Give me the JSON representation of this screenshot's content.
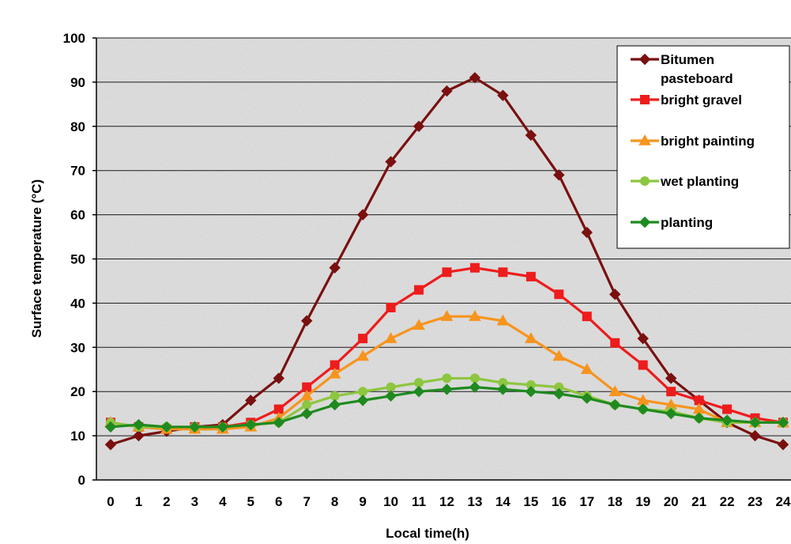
{
  "chart_data": {
    "type": "line",
    "title": "",
    "xlabel": "Local time(h)",
    "ylabel": "Surface temperature (°C)",
    "x": [
      0,
      1,
      2,
      3,
      4,
      5,
      6,
      7,
      8,
      9,
      10,
      11,
      12,
      13,
      14,
      15,
      16,
      17,
      18,
      19,
      20,
      21,
      22,
      23,
      24
    ],
    "xlim": [
      0,
      24
    ],
    "ylim": [
      0,
      100
    ],
    "yticks": [
      0,
      10,
      20,
      30,
      40,
      50,
      60,
      70,
      80,
      90,
      100
    ],
    "grid": true,
    "legend_position": "top-right",
    "series": [
      {
        "name": "Bitumen pasteboard",
        "legend_lines": [
          "Bitumen",
          "pasteboard"
        ],
        "color": "#7a1010",
        "marker": "diamond",
        "values": [
          8,
          10,
          11,
          12,
          12.5,
          18,
          23,
          36,
          48,
          60,
          72,
          80,
          88,
          91,
          87,
          78,
          69,
          56,
          42,
          32,
          23,
          18,
          13,
          10,
          8
        ]
      },
      {
        "name": "bright gravel",
        "legend_lines": [
          "bright gravel"
        ],
        "color": "#ee1c1c",
        "marker": "square",
        "values": [
          13,
          12,
          11.5,
          12,
          12,
          13,
          16,
          21,
          26,
          32,
          39,
          43,
          47,
          48,
          47,
          46,
          42,
          37,
          31,
          26,
          20,
          18,
          16,
          14,
          13
        ]
      },
      {
        "name": "bright painting",
        "legend_lines": [
          "bright painting"
        ],
        "color": "#f7941d",
        "marker": "triangle",
        "values": [
          13,
          12,
          11.5,
          11.5,
          11.5,
          12,
          14,
          19,
          24,
          28,
          32,
          35,
          37,
          37,
          36,
          32,
          28,
          25,
          20,
          18,
          17,
          16,
          13,
          13,
          13
        ]
      },
      {
        "name": "wet planting",
        "legend_lines": [
          "wet planting"
        ],
        "color": "#8dc63f",
        "marker": "circle",
        "values": [
          13,
          12,
          12,
          12,
          12,
          12.5,
          13,
          17,
          19,
          20,
          21,
          22,
          23,
          23,
          22,
          21.5,
          21,
          19,
          17,
          16,
          15.5,
          14,
          13,
          13,
          13
        ]
      },
      {
        "name": "planting",
        "legend_lines": [
          "planting"
        ],
        "color": "#1f8a1f",
        "marker": "diamond",
        "values": [
          12,
          12.5,
          12,
          12,
          12,
          12.5,
          13,
          15,
          17,
          18,
          19,
          20,
          20.5,
          21,
          20.5,
          20,
          19.5,
          18.5,
          17,
          16,
          15,
          14,
          13.5,
          13,
          13
        ]
      }
    ]
  }
}
